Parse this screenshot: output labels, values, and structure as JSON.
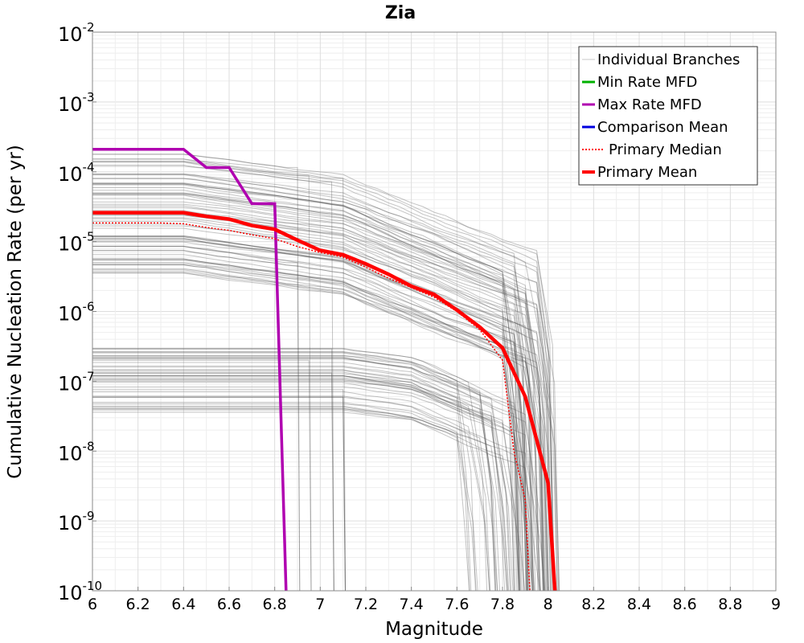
{
  "chart_data": {
    "type": "line",
    "title": "Zia",
    "xlabel": "Magnitude",
    "ylabel": "Cumulative Nucleation Rate (per yr)",
    "xlim": [
      6,
      9
    ],
    "ylim": [
      1e-10,
      0.01
    ],
    "yscale": "log",
    "grid": true,
    "legend_position": "top-right",
    "x_ticks": [
      "6",
      "6.2",
      "6.4",
      "6.6",
      "6.8",
      "7",
      "7.2",
      "7.4",
      "7.6",
      "7.8",
      "8",
      "8.2",
      "8.4",
      "8.6",
      "8.8",
      "9"
    ],
    "y_ticks": [
      {
        "base": "10",
        "exp": "-10",
        "value": 1e-10
      },
      {
        "base": "10",
        "exp": "-9",
        "value": 1e-09
      },
      {
        "base": "10",
        "exp": "-8",
        "value": 1e-08
      },
      {
        "base": "10",
        "exp": "-7",
        "value": 1e-07
      },
      {
        "base": "10",
        "exp": "-6",
        "value": 1e-06
      },
      {
        "base": "10",
        "exp": "-5",
        "value": 1e-05
      },
      {
        "base": "10",
        "exp": "-4",
        "value": 0.0001
      },
      {
        "base": "10",
        "exp": "-3",
        "value": 0.001
      },
      {
        "base": "10",
        "exp": "-2",
        "value": 0.01
      }
    ],
    "legend": [
      {
        "label": "Individual Branches",
        "color": "#c8c8c8",
        "style": "thin"
      },
      {
        "label": "Min Rate MFD",
        "color": "#00b000",
        "style": "solid"
      },
      {
        "label": "Max Rate MFD",
        "color": "#b000b0",
        "style": "solid"
      },
      {
        "label": "Comparison Mean",
        "color": "#0000e0",
        "style": "solid"
      },
      {
        "label": "Primary Median",
        "color": "#ff0000",
        "style": "dotted"
      },
      {
        "label": "Primary Mean",
        "color": "#ff0000",
        "style": "thick"
      }
    ],
    "series": [
      {
        "name": "Max Rate MFD",
        "color": "#b000b0",
        "x": [
          6.0,
          6.1,
          6.2,
          6.3,
          6.4,
          6.5,
          6.6,
          6.7,
          6.8,
          6.85
        ],
        "y": [
          0.00021,
          0.00021,
          0.00021,
          0.00021,
          0.00021,
          0.000115,
          0.000115,
          3.5e-05,
          3.5e-05,
          1e-10
        ]
      },
      {
        "name": "Primary Median",
        "color": "#ff0000",
        "x": [
          6.0,
          6.1,
          6.2,
          6.3,
          6.4,
          6.5,
          6.6,
          6.7,
          6.8,
          6.9,
          7.0,
          7.1,
          7.2,
          7.3,
          7.4,
          7.5,
          7.6,
          7.7,
          7.8,
          7.85,
          7.9,
          7.92
        ],
        "y": [
          1.85e-05,
          1.85e-05,
          1.85e-05,
          1.85e-05,
          1.8e-05,
          1.6e-05,
          1.45e-05,
          1.25e-05,
          1.1e-05,
          8.5e-06,
          7e-06,
          6e-06,
          4.3e-06,
          3e-06,
          2.2e-06,
          1.6e-06,
          1e-06,
          5.5e-07,
          2e-07,
          1e-08,
          2e-09,
          1e-10
        ]
      },
      {
        "name": "Primary Mean",
        "color": "#ff0000",
        "x": [
          6.0,
          6.1,
          6.2,
          6.3,
          6.4,
          6.5,
          6.6,
          6.7,
          6.8,
          6.9,
          7.0,
          7.1,
          7.2,
          7.3,
          7.4,
          7.5,
          7.6,
          7.7,
          7.8,
          7.9,
          8.0,
          8.03
        ],
        "y": [
          2.6e-05,
          2.6e-05,
          2.6e-05,
          2.6e-05,
          2.6e-05,
          2.3e-05,
          2.1e-05,
          1.7e-05,
          1.5e-05,
          1.05e-05,
          7.5e-06,
          6.5e-06,
          4.8e-06,
          3.4e-06,
          2.3e-06,
          1.75e-06,
          1.05e-06,
          6e-07,
          3e-07,
          6e-08,
          3.5e-09,
          1e-10
        ]
      }
    ],
    "branch_bundles": [
      {
        "y_low": 3.5e-06,
        "y_high": 0.00018,
        "count": 70,
        "plateau_end": 6.4,
        "mid_end": 7.1,
        "drop_start": 7.8,
        "drop_end": 8.0,
        "color": "#555555"
      },
      {
        "y_low": 3.5e-08,
        "y_high": 3.2e-07,
        "count": 45,
        "plateau_end": 7.1,
        "mid_end": 7.4,
        "drop_start": 7.6,
        "drop_end": 7.95,
        "color": "#555555"
      }
    ]
  }
}
